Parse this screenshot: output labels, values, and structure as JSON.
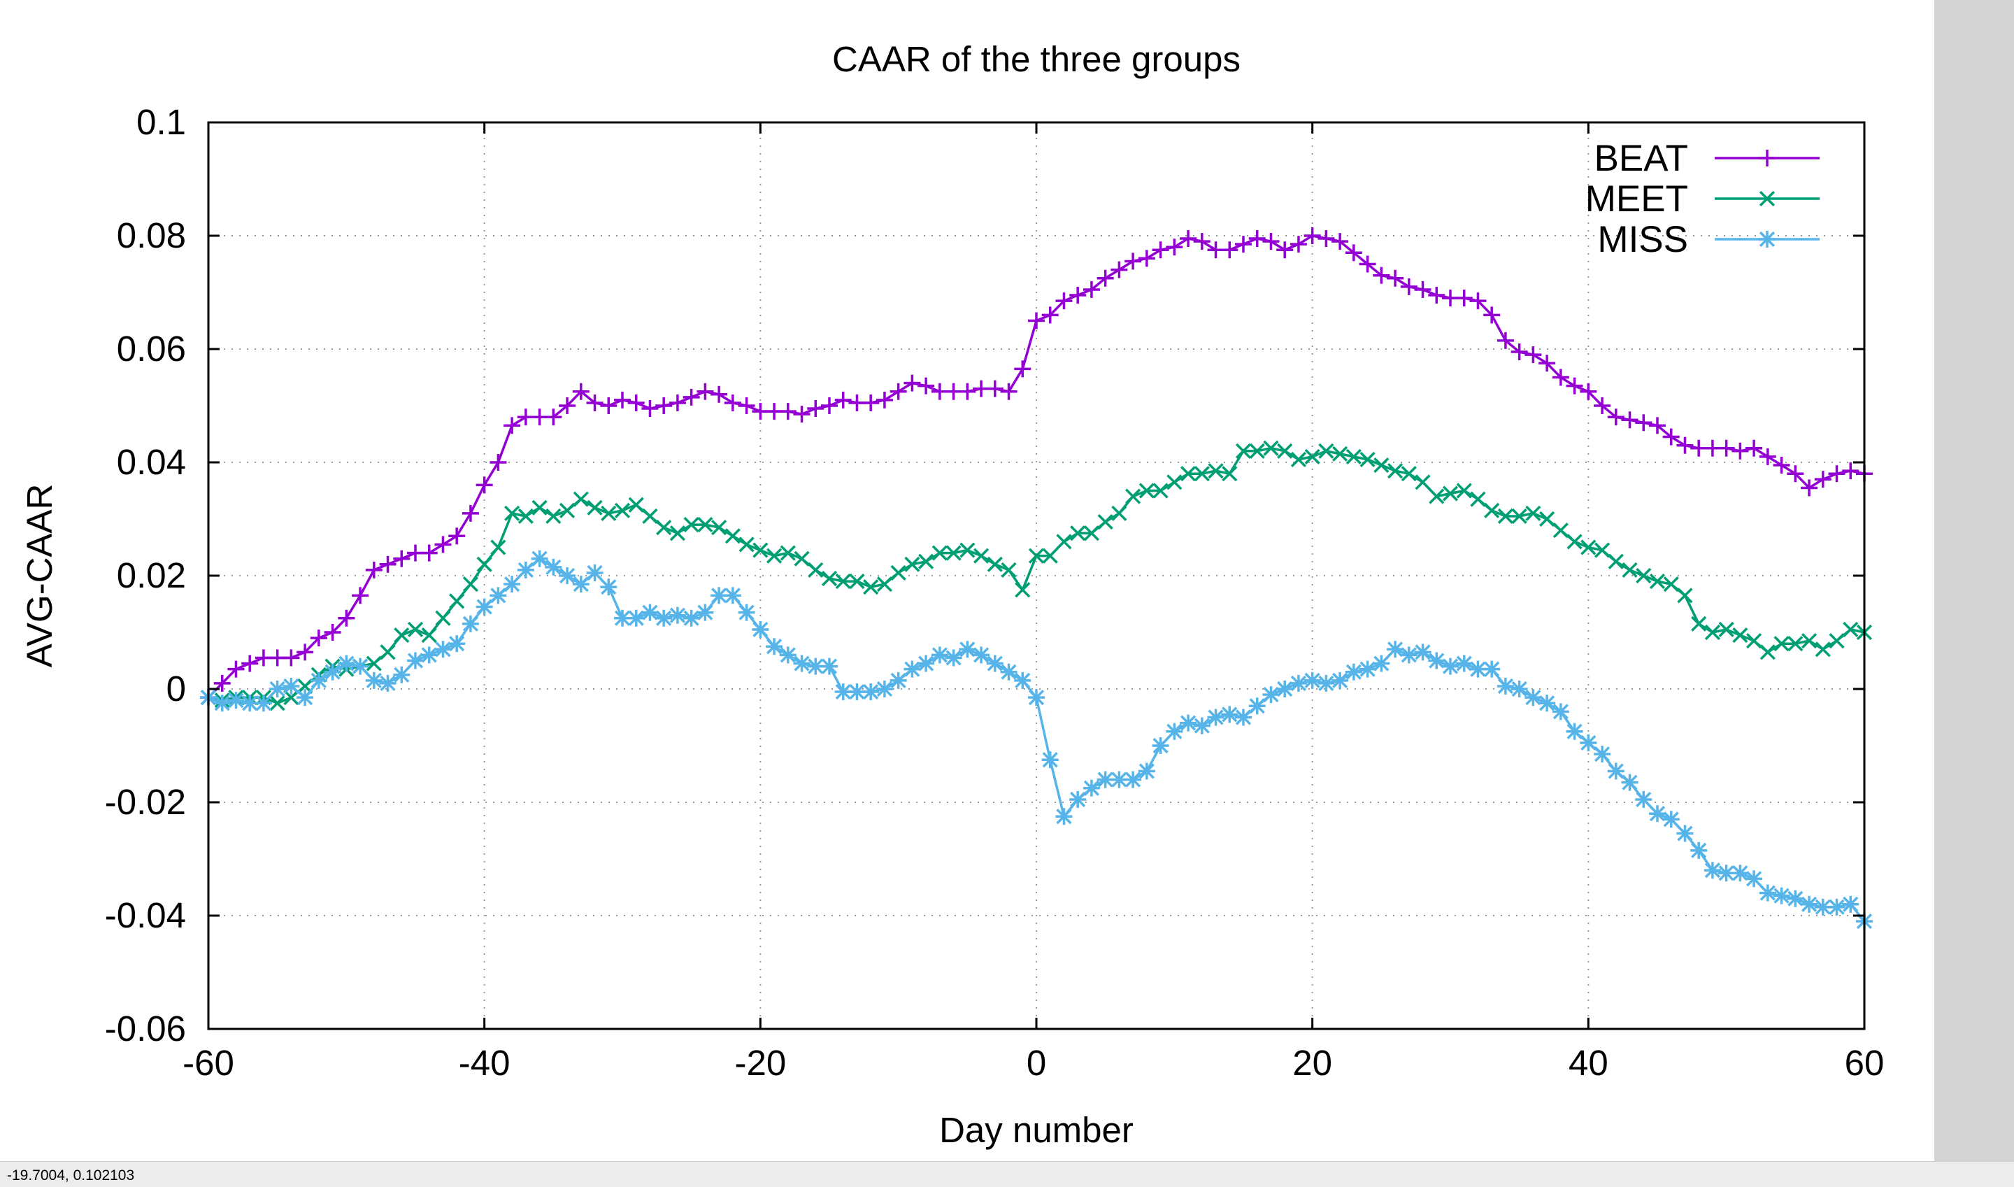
{
  "status_bar": {
    "coordinates": "-19.7004,  0.102103"
  },
  "colors": {
    "beat": "#9400d3",
    "meet": "#009e73",
    "miss": "#56b4e9",
    "frame": "#000000",
    "grid": "#9a9a9a",
    "panel": "#d4d4d4"
  },
  "icons": {
    "beat": "plus-marker",
    "meet": "cross-marker",
    "miss": "star-marker"
  },
  "chart_data": {
    "type": "line",
    "title": "CAAR of the three groups",
    "xlabel": "Day number",
    "ylabel": "AVG-CAAR",
    "xlim": [
      -60,
      60
    ],
    "ylim": [
      -0.06,
      0.1
    ],
    "xticks": [
      -60,
      -40,
      -20,
      0,
      20,
      40,
      60
    ],
    "xtick_labels": [
      "-60",
      "-40",
      "-20",
      "0",
      "20",
      "40",
      "60"
    ],
    "yticks": [
      -0.06,
      -0.04,
      -0.02,
      0,
      0.02,
      0.04,
      0.06,
      0.08,
      0.1
    ],
    "ytick_labels": [
      "-0.06",
      "-0.04",
      "-0.02",
      "0",
      "0.02",
      "0.04",
      "0.06",
      "0.08",
      "0.1"
    ],
    "grid": true,
    "legend_position": "top-right",
    "x": [
      -60,
      -59,
      -58,
      -57,
      -56,
      -55,
      -54,
      -53,
      -52,
      -51,
      -50,
      -49,
      -48,
      -47,
      -46,
      -45,
      -44,
      -43,
      -42,
      -41,
      -40,
      -39,
      -38,
      -37,
      -36,
      -35,
      -34,
      -33,
      -32,
      -31,
      -30,
      -29,
      -28,
      -27,
      -26,
      -25,
      -24,
      -23,
      -22,
      -21,
      -20,
      -19,
      -18,
      -17,
      -16,
      -15,
      -14,
      -13,
      -12,
      -11,
      -10,
      -9,
      -8,
      -7,
      -6,
      -5,
      -4,
      -3,
      -2,
      -1,
      0,
      1,
      2,
      3,
      4,
      5,
      6,
      7,
      8,
      9,
      10,
      11,
      12,
      13,
      14,
      15,
      16,
      17,
      18,
      19,
      20,
      21,
      22,
      23,
      24,
      25,
      26,
      27,
      28,
      29,
      30,
      31,
      32,
      33,
      34,
      35,
      36,
      37,
      38,
      39,
      40,
      41,
      42,
      43,
      44,
      45,
      46,
      47,
      48,
      49,
      50,
      51,
      52,
      53,
      54,
      55,
      56,
      57,
      58,
      59,
      60
    ],
    "series": [
      {
        "name": "BEAT",
        "marker": "plus",
        "values": [
          -0.0015,
          0.001,
          0.0035,
          0.0045,
          0.0055,
          0.0055,
          0.0055,
          0.0065,
          0.009,
          0.01,
          0.0125,
          0.0165,
          0.021,
          0.022,
          0.023,
          0.024,
          0.024,
          0.0255,
          0.027,
          0.031,
          0.036,
          0.04,
          0.0465,
          0.048,
          0.048,
          0.048,
          0.05,
          0.0525,
          0.0505,
          0.05,
          0.051,
          0.0505,
          0.0495,
          0.05,
          0.0505,
          0.0515,
          0.0525,
          0.052,
          0.0505,
          0.05,
          0.049,
          0.049,
          0.049,
          0.0485,
          0.0495,
          0.05,
          0.051,
          0.0505,
          0.0505,
          0.051,
          0.0525,
          0.054,
          0.0535,
          0.0525,
          0.0525,
          0.0525,
          0.053,
          0.053,
          0.0525,
          0.0565,
          0.065,
          0.066,
          0.0685,
          0.0695,
          0.0705,
          0.0725,
          0.074,
          0.0755,
          0.076,
          0.0775,
          0.078,
          0.0795,
          0.079,
          0.0775,
          0.0775,
          0.0785,
          0.0795,
          0.079,
          0.0775,
          0.0785,
          0.08,
          0.0795,
          0.079,
          0.077,
          0.075,
          0.073,
          0.0725,
          0.071,
          0.0705,
          0.0695,
          0.069,
          0.069,
          0.0685,
          0.066,
          0.0615,
          0.0595,
          0.059,
          0.0575,
          0.055,
          0.0535,
          0.0525,
          0.05,
          0.048,
          0.0475,
          0.047,
          0.0465,
          0.0445,
          0.043,
          0.0425,
          0.0425,
          0.0425,
          0.042,
          0.0425,
          0.041,
          0.0395,
          0.038,
          0.0355,
          0.037,
          0.038,
          0.0385,
          0.038
        ]
      },
      {
        "name": "MEET",
        "marker": "cross",
        "values": [
          -0.0015,
          -0.002,
          -0.0015,
          -0.0015,
          -0.0015,
          -0.0025,
          -0.0015,
          0.0005,
          0.0025,
          0.004,
          0.0035,
          0.004,
          0.0045,
          0.0065,
          0.0095,
          0.0105,
          0.0095,
          0.0125,
          0.0155,
          0.0185,
          0.022,
          0.025,
          0.031,
          0.0305,
          0.032,
          0.0305,
          0.0315,
          0.0335,
          0.032,
          0.031,
          0.0315,
          0.0325,
          0.0305,
          0.0285,
          0.0275,
          0.029,
          0.029,
          0.0285,
          0.027,
          0.0255,
          0.0245,
          0.0235,
          0.024,
          0.023,
          0.021,
          0.0195,
          0.019,
          0.019,
          0.018,
          0.0185,
          0.0205,
          0.022,
          0.0225,
          0.024,
          0.024,
          0.0245,
          0.0235,
          0.022,
          0.021,
          0.0175,
          0.0235,
          0.0235,
          0.026,
          0.0275,
          0.0275,
          0.0295,
          0.031,
          0.034,
          0.035,
          0.035,
          0.0365,
          0.038,
          0.038,
          0.0385,
          0.038,
          0.042,
          0.042,
          0.0425,
          0.042,
          0.0405,
          0.041,
          0.042,
          0.0415,
          0.041,
          0.0405,
          0.0395,
          0.0385,
          0.038,
          0.0365,
          0.034,
          0.0345,
          0.035,
          0.0335,
          0.0315,
          0.0305,
          0.0305,
          0.031,
          0.03,
          0.028,
          0.026,
          0.025,
          0.0245,
          0.0225,
          0.021,
          0.02,
          0.019,
          0.0185,
          0.0165,
          0.0115,
          0.01,
          0.0105,
          0.0095,
          0.0085,
          0.0065,
          0.008,
          0.008,
          0.0085,
          0.007,
          0.0085,
          0.0105,
          0.01
        ]
      },
      {
        "name": "MISS",
        "marker": "star",
        "values": [
          -0.0015,
          -0.0025,
          -0.002,
          -0.0025,
          -0.0025,
          0,
          0.0005,
          -0.0015,
          0.0015,
          0.003,
          0.0045,
          0.004,
          0.0015,
          0.001,
          0.0025,
          0.005,
          0.006,
          0.007,
          0.008,
          0.0115,
          0.0145,
          0.0165,
          0.0185,
          0.021,
          0.023,
          0.0215,
          0.02,
          0.0185,
          0.0205,
          0.018,
          0.0125,
          0.0125,
          0.0135,
          0.0125,
          0.013,
          0.0125,
          0.0135,
          0.0165,
          0.0165,
          0.0135,
          0.0105,
          0.0075,
          0.006,
          0.0045,
          0.004,
          0.004,
          -0.0005,
          -0.0005,
          -0.0005,
          0,
          0.0015,
          0.0035,
          0.0045,
          0.006,
          0.0055,
          0.007,
          0.006,
          0.0045,
          0.003,
          0.0015,
          -0.0015,
          -0.0125,
          -0.0225,
          -0.0195,
          -0.0175,
          -0.016,
          -0.016,
          -0.016,
          -0.0145,
          -0.01,
          -0.0075,
          -0.006,
          -0.0065,
          -0.005,
          -0.0045,
          -0.005,
          -0.003,
          -0.001,
          0,
          0.001,
          0.0015,
          0.001,
          0.0015,
          0.003,
          0.0035,
          0.0045,
          0.007,
          0.006,
          0.0065,
          0.005,
          0.004,
          0.0045,
          0.0035,
          0.0035,
          0.0005,
          0,
          -0.0015,
          -0.0025,
          -0.004,
          -0.0075,
          -0.0095,
          -0.0115,
          -0.0145,
          -0.0165,
          -0.0195,
          -0.022,
          -0.023,
          -0.0255,
          -0.0285,
          -0.032,
          -0.0325,
          -0.0325,
          -0.0335,
          -0.036,
          -0.0365,
          -0.037,
          -0.038,
          -0.0385,
          -0.0385,
          -0.038,
          -0.041
        ]
      }
    ]
  }
}
